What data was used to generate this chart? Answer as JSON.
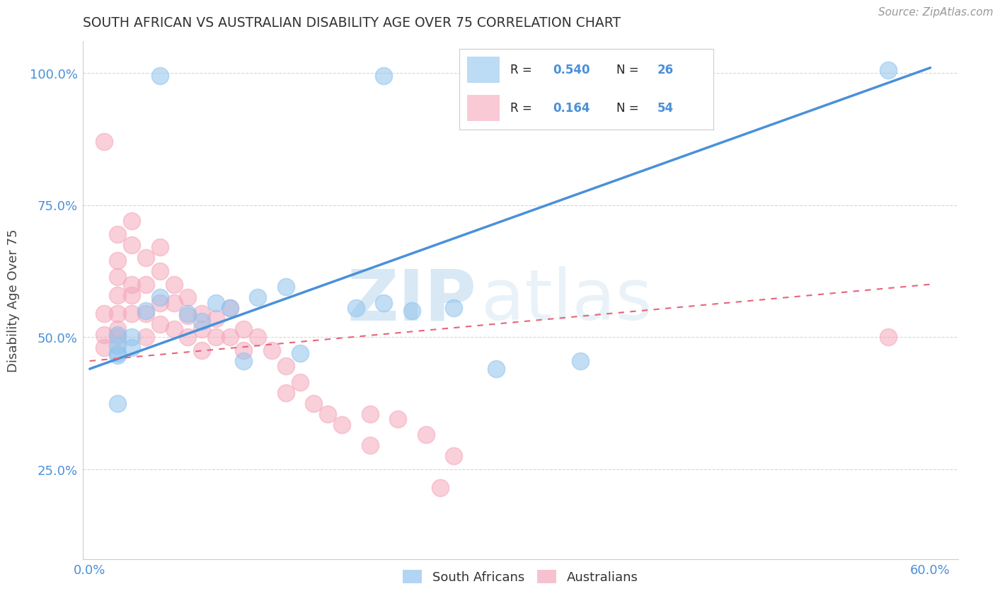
{
  "title": "SOUTH AFRICAN VS AUSTRALIAN DISABILITY AGE OVER 75 CORRELATION CHART",
  "source_text": "Source: ZipAtlas.com",
  "ylabel": "Disability Age Over 75",
  "xlim": [
    -0.005,
    0.62
  ],
  "ylim": [
    0.08,
    1.06
  ],
  "xticks": [
    0.0,
    0.1,
    0.2,
    0.3,
    0.4,
    0.5,
    0.6
  ],
  "xticklabels": [
    "0.0%",
    "",
    "",
    "",
    "",
    "",
    "60.0%"
  ],
  "yticks": [
    0.25,
    0.5,
    0.75,
    1.0
  ],
  "yticklabels": [
    "25.0%",
    "50.0%",
    "75.0%",
    "100.0%"
  ],
  "grid_color": "#cccccc",
  "background_color": "#ffffff",
  "blue_color": "#90c4ee",
  "pink_color": "#f5a8bc",
  "blue_line_color": "#4a90d9",
  "pink_line_color": "#e8637a",
  "r_blue": 0.54,
  "n_blue": 26,
  "r_pink": 0.164,
  "n_pink": 54,
  "watermark_zip": "ZIP",
  "watermark_atlas": "atlas",
  "legend_label_blue": "South Africans",
  "legend_label_pink": "Australians",
  "blue_line_x0": 0.0,
  "blue_line_y0": 0.44,
  "blue_line_x1": 0.6,
  "blue_line_y1": 1.01,
  "pink_line_x0": 0.0,
  "pink_line_y0": 0.455,
  "pink_line_x1": 0.6,
  "pink_line_y1": 0.6,
  "blue_points_x": [
    0.05,
    0.21,
    0.02,
    0.02,
    0.03,
    0.02,
    0.03,
    0.02,
    0.04,
    0.05,
    0.07,
    0.08,
    0.09,
    0.1,
    0.12,
    0.14,
    0.19,
    0.21,
    0.23,
    0.26,
    0.57,
    0.29,
    0.02,
    0.11,
    0.15,
    0.35
  ],
  "blue_points_y": [
    0.995,
    0.995,
    0.505,
    0.47,
    0.5,
    0.485,
    0.48,
    0.465,
    0.55,
    0.575,
    0.545,
    0.53,
    0.565,
    0.555,
    0.575,
    0.595,
    0.555,
    0.565,
    0.55,
    0.555,
    1.005,
    0.44,
    0.375,
    0.455,
    0.47,
    0.455
  ],
  "pink_points_x": [
    0.01,
    0.01,
    0.01,
    0.01,
    0.02,
    0.02,
    0.02,
    0.02,
    0.02,
    0.02,
    0.02,
    0.03,
    0.03,
    0.03,
    0.03,
    0.03,
    0.04,
    0.04,
    0.04,
    0.04,
    0.05,
    0.05,
    0.05,
    0.05,
    0.06,
    0.06,
    0.06,
    0.07,
    0.07,
    0.07,
    0.08,
    0.08,
    0.08,
    0.09,
    0.09,
    0.1,
    0.1,
    0.11,
    0.11,
    0.12,
    0.13,
    0.14,
    0.14,
    0.15,
    0.16,
    0.17,
    0.18,
    0.2,
    0.2,
    0.22,
    0.24,
    0.25,
    0.26,
    0.57
  ],
  "pink_points_y": [
    0.87,
    0.545,
    0.505,
    0.48,
    0.695,
    0.645,
    0.615,
    0.58,
    0.545,
    0.515,
    0.5,
    0.72,
    0.675,
    0.6,
    0.58,
    0.545,
    0.65,
    0.6,
    0.545,
    0.5,
    0.67,
    0.625,
    0.565,
    0.525,
    0.6,
    0.565,
    0.515,
    0.575,
    0.54,
    0.5,
    0.545,
    0.515,
    0.475,
    0.535,
    0.5,
    0.555,
    0.5,
    0.515,
    0.475,
    0.5,
    0.475,
    0.445,
    0.395,
    0.415,
    0.375,
    0.355,
    0.335,
    0.355,
    0.295,
    0.345,
    0.315,
    0.215,
    0.275,
    0.5
  ]
}
